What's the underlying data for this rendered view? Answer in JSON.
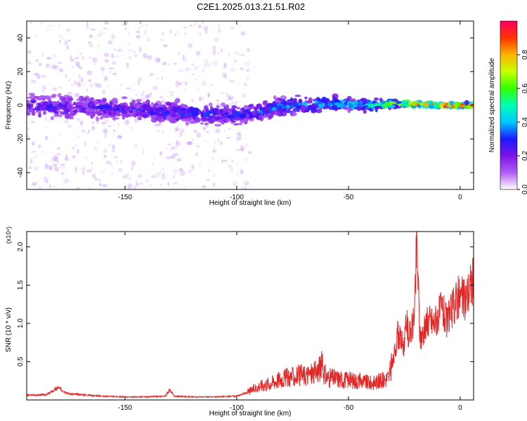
{
  "title": "C2E1.2025.013.21.51.R02",
  "colors": {
    "frame": "#000000",
    "snr_line": "#e32626",
    "spectral_base": "#7a12e6"
  },
  "chart_data": [
    {
      "type": "heatmap",
      "title": "C2E1.2025.013.21.51.R02",
      "xlabel": "Height of straight line (km)",
      "ylabel": "Frequency (Hz)",
      "xlim": [
        -194,
        6
      ],
      "ylim": [
        -50,
        50
      ],
      "xticks": [
        -150,
        -100,
        -50,
        0
      ],
      "xtick_labels": [
        "-150",
        "-100",
        "-50",
        "0"
      ],
      "yticks": [
        -40,
        -20,
        0,
        20,
        40
      ],
      "ytick_labels": [
        "-40",
        "-20",
        "0",
        "20",
        "40"
      ],
      "colorbar": {
        "label": "Normalized spectral amplitude",
        "range": [
          0,
          1
        ],
        "ticks": [
          0,
          0.2,
          0.4,
          0.6,
          0.8
        ],
        "tick_labels": [
          "0.0",
          "0.2",
          "0.4",
          "0.6",
          "0.8"
        ],
        "colormap": "rainbow (violet to red)"
      },
      "ridge": [
        {
          "x": -194,
          "y": 0,
          "half_width": 9,
          "amp": 0.25
        },
        {
          "x": -150,
          "y": -2,
          "half_width": 8,
          "amp": 0.25
        },
        {
          "x": -120,
          "y": -5,
          "half_width": 8,
          "amp": 0.3
        },
        {
          "x": -100,
          "y": -6,
          "half_width": 8,
          "amp": 0.3
        },
        {
          "x": -80,
          "y": -1,
          "half_width": 7,
          "amp": 0.35
        },
        {
          "x": -60,
          "y": 1,
          "half_width": 6,
          "amp": 0.4
        },
        {
          "x": -40,
          "y": 0,
          "half_width": 4,
          "amp": 0.5
        },
        {
          "x": -25,
          "y": 1,
          "half_width": 3,
          "amp": 0.7
        },
        {
          "x": -10,
          "y": 0,
          "half_width": 2,
          "amp": 0.9
        },
        {
          "x": 6,
          "y": 0,
          "half_width": 2,
          "amp": 0.95
        }
      ]
    },
    {
      "type": "line",
      "xlabel": "Height of straight line (km)",
      "ylabel": "SNR (10 * v/v)",
      "y_multiplier_label": "(x10⁴)",
      "xlim": [
        -194,
        6
      ],
      "ylim": [
        0,
        2.2
      ],
      "xticks": [
        -150,
        -100,
        -50,
        0
      ],
      "xtick_labels": [
        "-150",
        "-100",
        "-50",
        "0"
      ],
      "yticks": [
        0.5,
        1.0,
        1.5,
        2.0
      ],
      "ytick_labels": [
        "0.5",
        "1.0",
        "1.5",
        "2.0"
      ],
      "series": [
        {
          "color": "#e32626",
          "x": [
            -194,
            -185,
            -180,
            -175,
            -170,
            -160,
            -150,
            -140,
            -132,
            -130,
            -128,
            -120,
            -110,
            -100,
            -95,
            -90,
            -85,
            -80,
            -75,
            -70,
            -65,
            -62,
            -60,
            -55,
            -50,
            -45,
            -40,
            -35,
            -32,
            -30,
            -28,
            -25,
            -24,
            -23,
            -21,
            -20,
            -19.5,
            -18,
            -16,
            -14,
            -12,
            -10,
            -8,
            -6,
            -4,
            -2,
            0,
            2,
            4,
            6
          ],
          "y": [
            0.06,
            0.07,
            0.16,
            0.08,
            0.07,
            0.05,
            0.04,
            0.04,
            0.05,
            0.13,
            0.05,
            0.04,
            0.04,
            0.05,
            0.1,
            0.18,
            0.22,
            0.28,
            0.3,
            0.32,
            0.35,
            0.45,
            0.3,
            0.28,
            0.26,
            0.25,
            0.22,
            0.25,
            0.3,
            0.5,
            0.85,
            0.7,
            1.05,
            0.8,
            1.0,
            1.4,
            2.15,
            0.8,
            0.9,
            1.05,
            1.0,
            1.1,
            1.2,
            1.0,
            1.15,
            1.3,
            1.35,
            1.3,
            1.45,
            1.6
          ]
        }
      ]
    }
  ]
}
